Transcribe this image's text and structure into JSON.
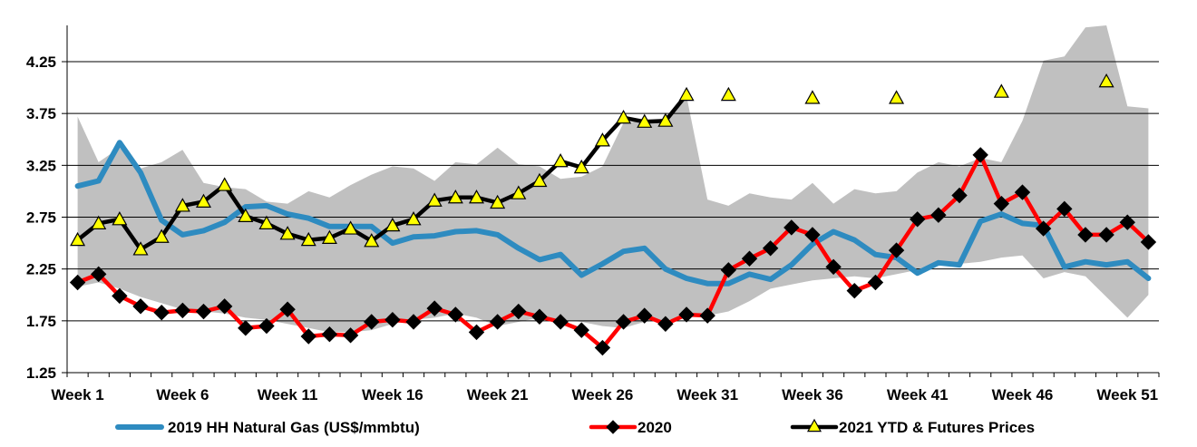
{
  "chart_data": {
    "type": "line",
    "title": "",
    "xlabel": "",
    "ylabel": "",
    "x_min": 1,
    "x_max": 52,
    "ylim": [
      1.25,
      4.6
    ],
    "y_ticks": [
      1.25,
      1.75,
      2.25,
      2.75,
      3.25,
      3.75,
      4.25
    ],
    "y_tick_labels": [
      "1.25",
      "1.75",
      "2.25",
      "2.75",
      "3.25",
      "3.75",
      "4.25"
    ],
    "x_ticks": [
      1,
      6,
      11,
      16,
      21,
      26,
      31,
      36,
      41,
      46,
      51
    ],
    "x_tick_labels": [
      "Week 1",
      "Week 6",
      "Week 11",
      "Week 16",
      "Week 21",
      "Week 26",
      "Week 31",
      "Week 36",
      "Week 41",
      "Week 46",
      "Week 51"
    ],
    "grid": "horizontal",
    "legend_position": "bottom",
    "range_band": {
      "color": "#c0c0c0",
      "upper": [
        3.72,
        3.28,
        3.42,
        3.22,
        3.28,
        3.4,
        3.08,
        3.04,
        3.02,
        2.9,
        2.88,
        3.0,
        2.94,
        3.06,
        3.16,
        3.24,
        3.22,
        3.1,
        3.28,
        3.26,
        3.42,
        3.26,
        3.24,
        3.12,
        3.14,
        3.24,
        3.66,
        3.68,
        3.7,
        3.92,
        2.92,
        2.86,
        2.98,
        2.94,
        2.92,
        3.08,
        2.88,
        3.02,
        2.98,
        3.0,
        3.18,
        3.28,
        3.24,
        3.32,
        3.28,
        3.68,
        4.26,
        4.3,
        4.58,
        4.62,
        3.82,
        3.8
      ],
      "lower": [
        2.08,
        2.12,
        2.06,
        1.98,
        1.92,
        1.86,
        1.84,
        1.82,
        1.78,
        1.76,
        1.72,
        1.68,
        1.64,
        1.64,
        1.66,
        1.72,
        1.76,
        1.78,
        1.82,
        1.78,
        1.7,
        1.74,
        1.78,
        1.76,
        1.74,
        1.7,
        1.68,
        1.74,
        1.76,
        1.78,
        1.8,
        1.84,
        1.94,
        2.06,
        2.1,
        2.14,
        2.16,
        2.18,
        2.16,
        2.2,
        2.24,
        2.28,
        2.3,
        2.32,
        2.36,
        2.38,
        2.16,
        2.22,
        2.18,
        1.98,
        1.78,
        2.0
      ]
    },
    "series": [
      {
        "name": "2019 HH Natural Gas (US$/mmbtu)",
        "color": "#2e8bc0",
        "marker": "none",
        "values": [
          3.05,
          3.1,
          3.47,
          3.18,
          2.72,
          2.58,
          2.62,
          2.7,
          2.85,
          2.86,
          2.78,
          2.74,
          2.66,
          2.66,
          2.66,
          2.5,
          2.56,
          2.57,
          2.61,
          2.62,
          2.58,
          2.45,
          2.34,
          2.39,
          2.19,
          2.3,
          2.42,
          2.45,
          2.25,
          2.16,
          2.11,
          2.11,
          2.2,
          2.15,
          2.29,
          2.49,
          2.61,
          2.53,
          2.39,
          2.36,
          2.21,
          2.31,
          2.29,
          2.71,
          2.78,
          2.69,
          2.67,
          2.27,
          2.32,
          2.29,
          2.32,
          2.16
        ]
      },
      {
        "name": "2020",
        "color": "#ff0000",
        "marker": "diamond",
        "values": [
          2.12,
          2.2,
          1.99,
          1.89,
          1.83,
          1.85,
          1.84,
          1.89,
          1.68,
          1.7,
          1.86,
          1.6,
          1.62,
          1.61,
          1.74,
          1.76,
          1.74,
          1.87,
          1.81,
          1.64,
          1.74,
          1.84,
          1.79,
          1.74,
          1.66,
          1.49,
          1.74,
          1.8,
          1.72,
          1.81,
          1.8,
          2.24,
          2.35,
          2.45,
          2.65,
          2.58,
          2.27,
          2.04,
          2.12,
          2.43,
          2.73,
          2.77,
          2.96,
          3.35,
          2.88,
          2.99,
          2.64,
          2.83,
          2.58,
          2.58,
          2.7,
          2.51
        ]
      },
      {
        "name": "2021 YTD & Futures Prices",
        "color": "#000000",
        "marker": "triangle",
        "marker_color": "#ffff00",
        "values": [
          2.53,
          2.69,
          2.73,
          2.44,
          2.56,
          2.86,
          2.9,
          3.06,
          2.76,
          2.69,
          2.59,
          2.53,
          2.55,
          2.64,
          2.52,
          2.67,
          2.73,
          2.91,
          2.94,
          2.94,
          2.89,
          2.98,
          3.1,
          3.29,
          3.23,
          3.49,
          3.71,
          3.67,
          3.68,
          3.93,
          null,
          3.93,
          null,
          null,
          null,
          3.9,
          null,
          null,
          null,
          3.9,
          null,
          null,
          null,
          null,
          3.96,
          null,
          null,
          null,
          null,
          4.06,
          null,
          null
        ],
        "line_until_index": 29
      }
    ]
  }
}
